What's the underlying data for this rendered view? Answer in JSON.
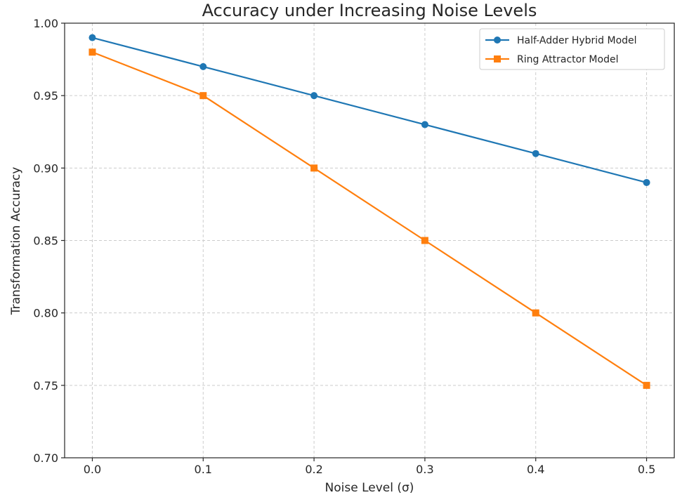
{
  "chart_data": {
    "type": "line",
    "title": "Accuracy under Increasing Noise Levels",
    "xlabel": "Noise Level (σ)",
    "ylabel": "Transformation Accuracy",
    "x": [
      0.0,
      0.1,
      0.2,
      0.3,
      0.4,
      0.5
    ],
    "xticks": [
      "0.0",
      "0.1",
      "0.2",
      "0.3",
      "0.4",
      "0.5"
    ],
    "yticks": [
      "0.70",
      "0.75",
      "0.80",
      "0.85",
      "0.90",
      "0.95",
      "1.00"
    ],
    "ytick_values": [
      0.7,
      0.75,
      0.8,
      0.85,
      0.9,
      0.95,
      1.0
    ],
    "xlim": [
      -0.025,
      0.525
    ],
    "ylim": [
      0.7,
      1.0
    ],
    "grid": true,
    "legend_position": "top-right",
    "series": [
      {
        "name": "Half-Adder Hybrid Model",
        "values": [
          0.99,
          0.97,
          0.95,
          0.93,
          0.91,
          0.89
        ],
        "color": "#1f77b4",
        "marker": "circle"
      },
      {
        "name": "Ring Attractor Model",
        "values": [
          0.98,
          0.95,
          0.9,
          0.85,
          0.8,
          0.75
        ],
        "color": "#ff7f0e",
        "marker": "square"
      }
    ]
  }
}
